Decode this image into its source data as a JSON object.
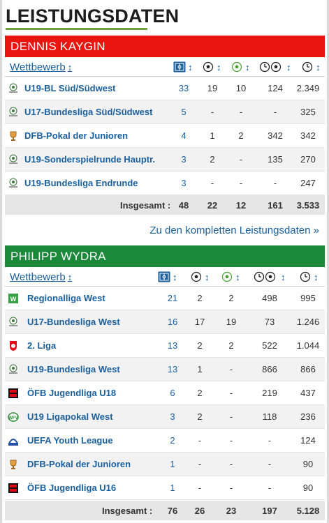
{
  "page_title": "LEISTUNGSDATEN",
  "more_link": "Zu den kompletten Leistungsdaten »",
  "sort_label": "Wettbewerb",
  "sort_arrow": "↕",
  "colors": {
    "link": "#1a5f9e",
    "header_red": "#e8160f",
    "header_green": "#1a8a3a",
    "underline": "#6fa43a"
  },
  "column_icons": [
    "appearances-icon",
    "goals-icon",
    "assists-icon",
    "minutes-per-goal-icon",
    "minutes-played-icon"
  ],
  "players": [
    {
      "name": "DENNIS KAYGIN",
      "rows": [
        {
          "icon": "dfb-junior-league-icon",
          "competition": "U19-BL Süd/Südwest",
          "apps": "33",
          "goals": "19",
          "assists": "10",
          "min_per_goal": "124",
          "minutes": "2.349"
        },
        {
          "icon": "dfb-junior-league-icon",
          "competition": "U17-Bundesliga Süd/Südwest",
          "apps": "5",
          "goals": "-",
          "assists": "-",
          "min_per_goal": "-",
          "minutes": "325"
        },
        {
          "icon": "dfb-pokal-icon",
          "competition": "DFB-Pokal der Junioren",
          "apps": "4",
          "goals": "1",
          "assists": "2",
          "min_per_goal": "342",
          "minutes": "342"
        },
        {
          "icon": "dfb-junior-league-icon",
          "competition": "U19-Sonderspielrunde Hauptr.",
          "apps": "3",
          "goals": "2",
          "assists": "-",
          "min_per_goal": "135",
          "minutes": "270"
        },
        {
          "icon": "dfb-junior-league-icon",
          "competition": "U19-Bundesliga Endrunde",
          "apps": "3",
          "goals": "-",
          "assists": "-",
          "min_per_goal": "-",
          "minutes": "247"
        }
      ],
      "total": {
        "label": "Insgesamt :",
        "apps": "48",
        "goals": "22",
        "assists": "12",
        "min_per_goal": "161",
        "minutes": "3.533"
      }
    },
    {
      "name": "PHILIPP WYDRA",
      "rows": [
        {
          "icon": "regionalliga-west-icon",
          "competition": "Regionalliga West",
          "apps": "21",
          "goals": "2",
          "assists": "2",
          "min_per_goal": "498",
          "minutes": "995"
        },
        {
          "icon": "dfb-junior-league-icon",
          "competition": "U17-Bundesliga West",
          "apps": "16",
          "goals": "17",
          "assists": "19",
          "min_per_goal": "73",
          "minutes": "1.246"
        },
        {
          "icon": "2-liga-icon",
          "competition": "2. Liga",
          "apps": "13",
          "goals": "2",
          "assists": "2",
          "min_per_goal": "522",
          "minutes": "1.044"
        },
        {
          "icon": "dfb-junior-league-icon",
          "competition": "U19-Bundesliga West",
          "apps": "13",
          "goals": "1",
          "assists": "-",
          "min_per_goal": "866",
          "minutes": "866"
        },
        {
          "icon": "oefb-junior-league-icon",
          "competition": "ÖFB Jugendliga U18",
          "apps": "6",
          "goals": "2",
          "assists": "-",
          "min_per_goal": "219",
          "minutes": "437"
        },
        {
          "icon": "wfv-pokal-icon",
          "competition": "U19 Ligapokal West",
          "apps": "3",
          "goals": "2",
          "assists": "-",
          "min_per_goal": "118",
          "minutes": "236"
        },
        {
          "icon": "uefa-youth-league-icon",
          "competition": "UEFA Youth League",
          "apps": "2",
          "goals": "-",
          "assists": "-",
          "min_per_goal": "-",
          "minutes": "124"
        },
        {
          "icon": "dfb-pokal-icon",
          "competition": "DFB-Pokal der Junioren",
          "apps": "1",
          "goals": "-",
          "assists": "-",
          "min_per_goal": "-",
          "minutes": "90"
        },
        {
          "icon": "oefb-junior-league-icon",
          "competition": "ÖFB Jugendliga U16",
          "apps": "1",
          "goals": "-",
          "assists": "-",
          "min_per_goal": "-",
          "minutes": "90"
        }
      ],
      "total": {
        "label": "Insgesamt :",
        "apps": "76",
        "goals": "26",
        "assists": "23",
        "min_per_goal": "197",
        "minutes": "5.128"
      }
    }
  ]
}
